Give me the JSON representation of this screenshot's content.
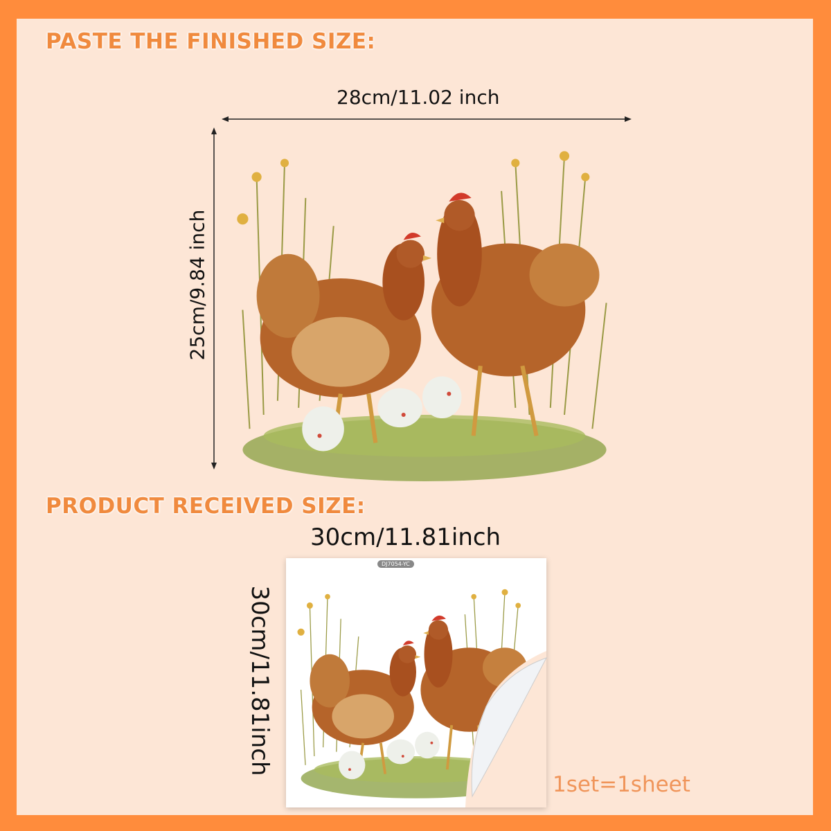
{
  "finished": {
    "heading": "PASTE THE FINISHED SIZE:",
    "width_label": "28cm/11.02 inch",
    "height_label": "25cm/9.84 inch"
  },
  "received": {
    "heading": "PRODUCT RECEIVED SIZE:",
    "width_label": "30cm/11.81inch",
    "height_label": "30cm/11.81inch",
    "sheet_code": "DJ7054-YC"
  },
  "set_note": "1set=1sheet",
  "colors": {
    "border": "#ff8c3c",
    "background": "#fde6d6",
    "heading": "#f08a3e",
    "note": "#f0955a"
  }
}
